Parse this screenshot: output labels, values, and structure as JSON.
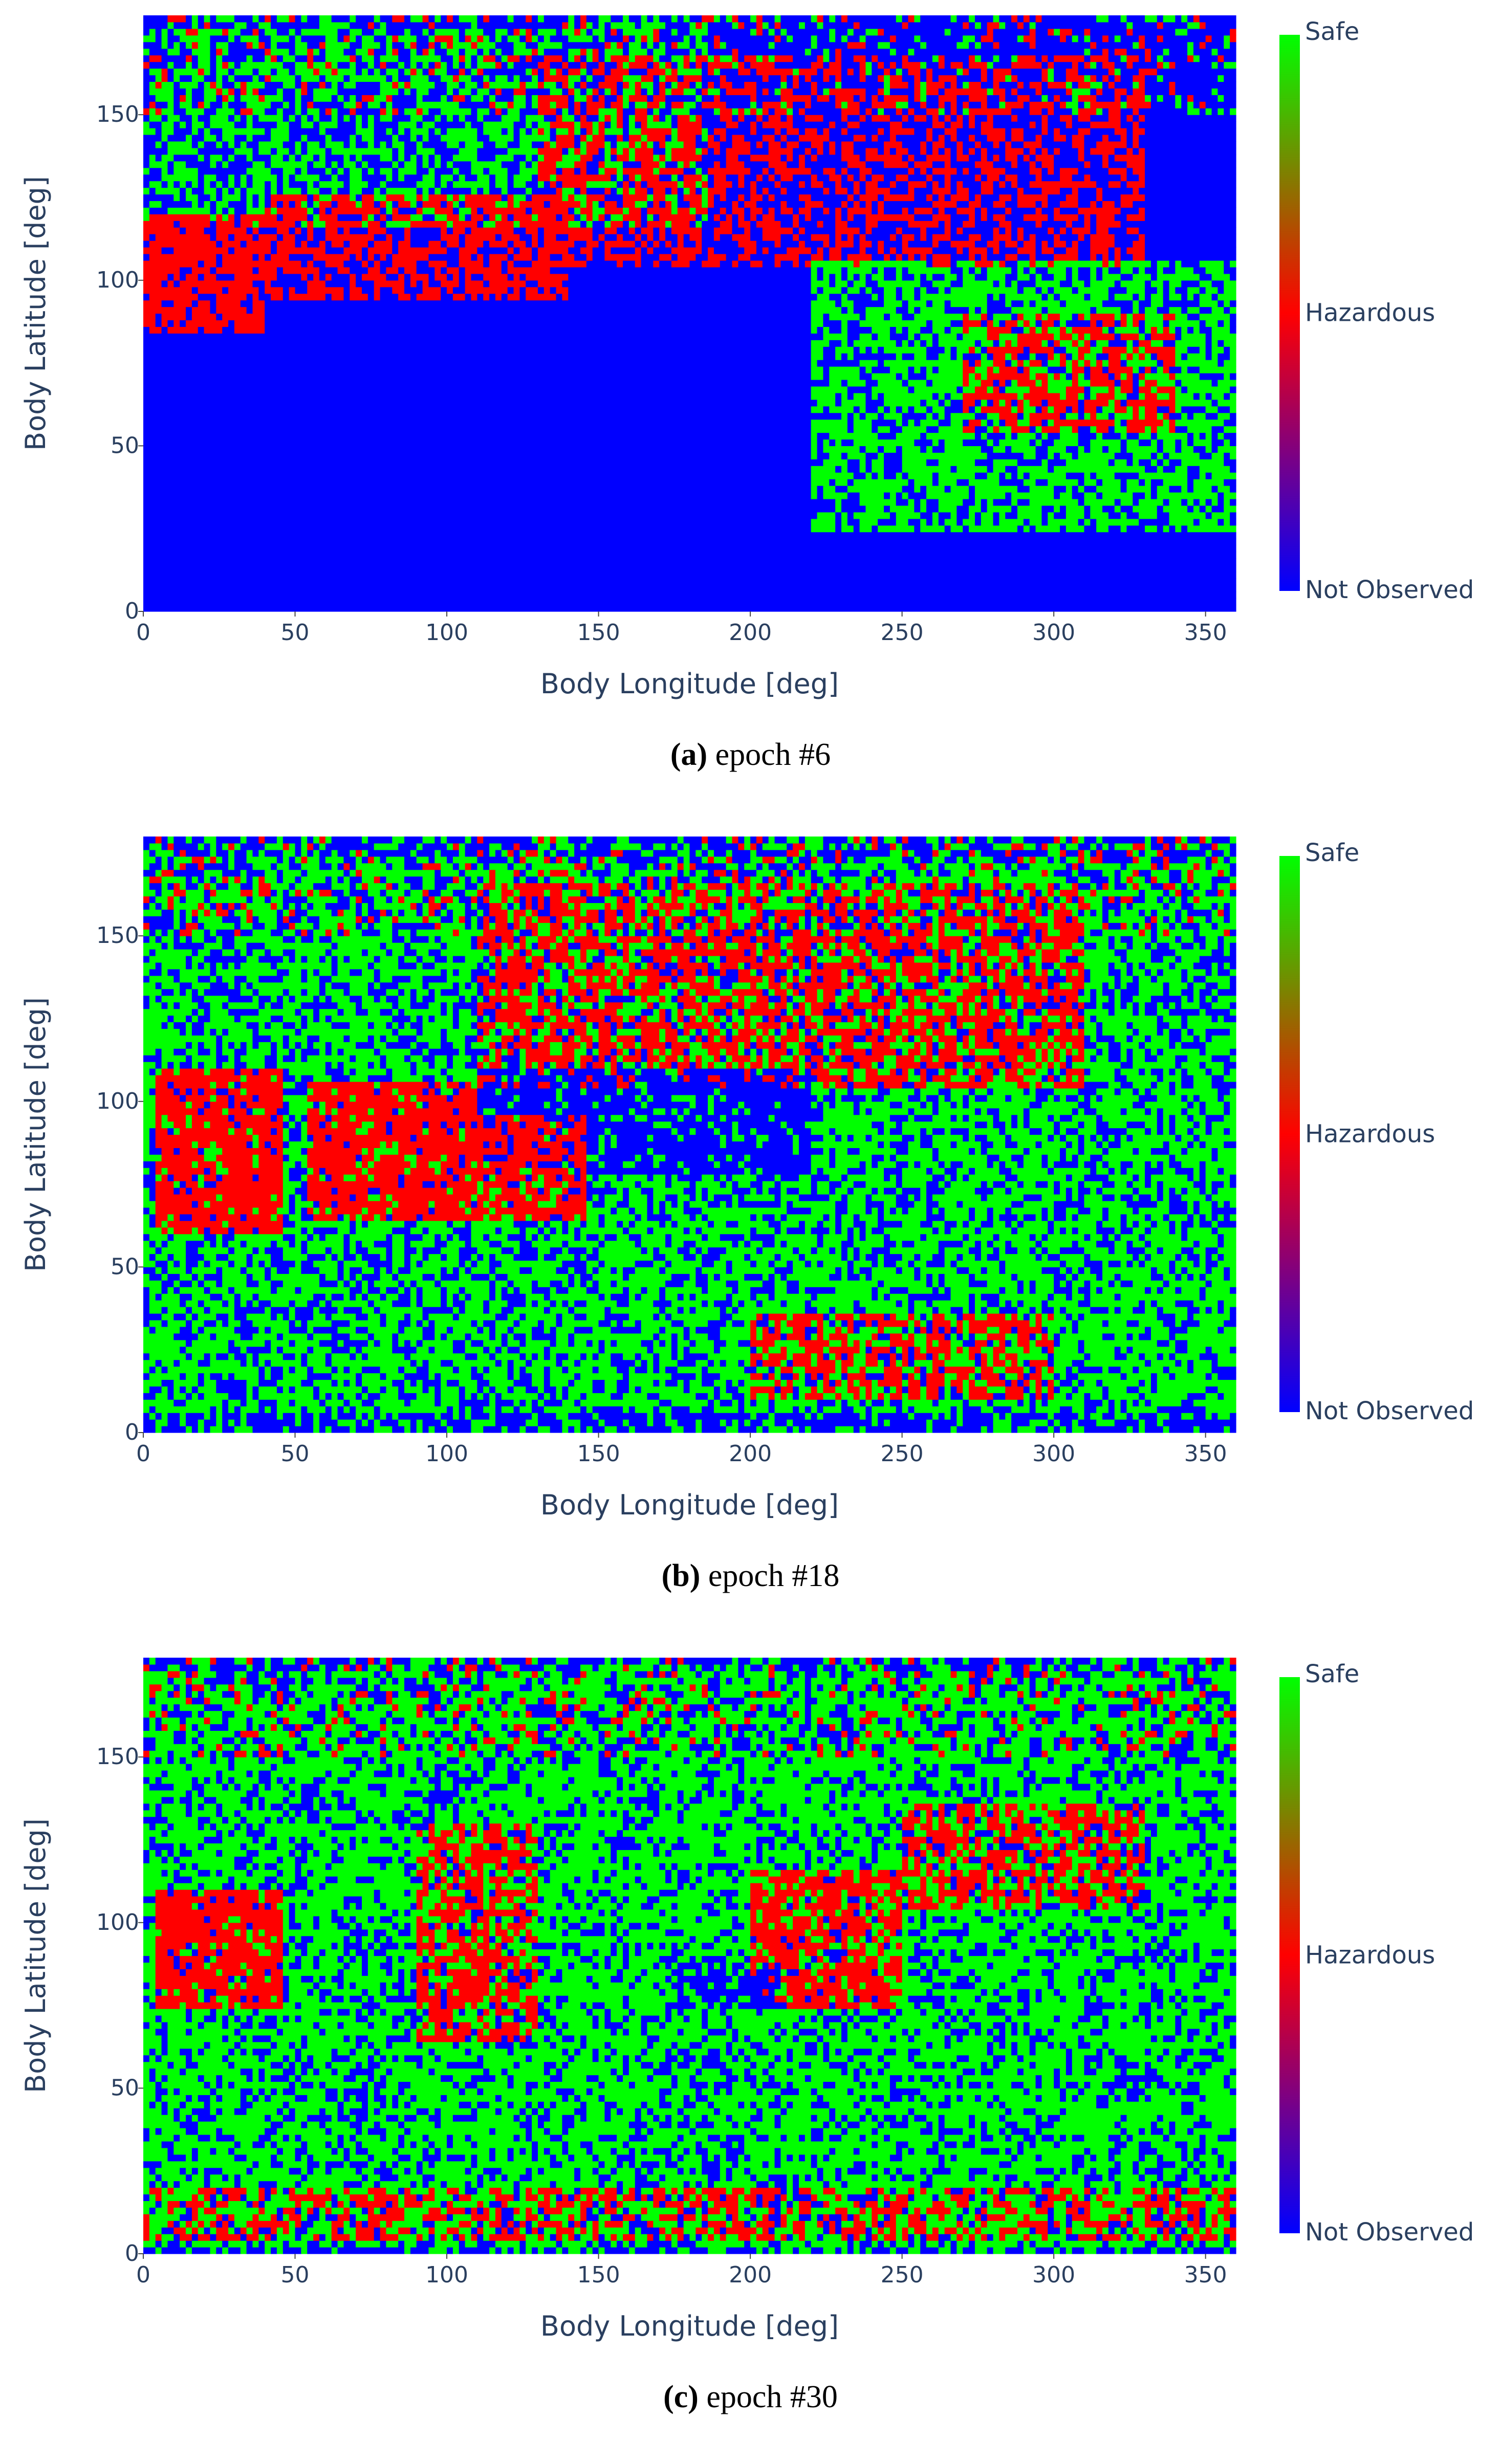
{
  "panels": [
    {
      "caption_label": "(a)",
      "caption_text": "epoch #6",
      "chart_data": {
        "type": "heatmap",
        "xlabel": "Body Longitude [deg]",
        "ylabel": "Body Latitude [deg]",
        "xlim": [
          0,
          360
        ],
        "ylim": [
          0,
          180
        ],
        "xticks": [
          0,
          50,
          100,
          150,
          200,
          250,
          300,
          350
        ],
        "yticks": [
          0,
          50,
          100,
          150
        ],
        "colorbar": {
          "labels": [
            "Safe",
            "Hazardous",
            "Not Observed"
          ],
          "colors": [
            "#00ff00",
            "#ff0000",
            "#0000ff"
          ]
        },
        "classes": [
          "Not Observed",
          "Hazardous",
          "Safe"
        ],
        "regions": [
          {
            "class": "Not Observed",
            "lon_range": [
              0,
              360
            ],
            "lat_range": [
              0,
              180
            ],
            "noise": 0.04
          },
          {
            "class": "Safe",
            "lon_range": [
              0,
              185
            ],
            "lat_range": [
              115,
              180
            ],
            "noise": 0.45
          },
          {
            "class": "Hazardous",
            "lon_range": [
              130,
              330
            ],
            "lat_range": [
              105,
              168
            ],
            "noise": 0.5
          },
          {
            "class": "Hazardous",
            "lon_range": [
              0,
              40
            ],
            "lat_range": [
              85,
              120
            ],
            "noise": 0.2
          },
          {
            "class": "Hazardous",
            "lon_range": [
              40,
              140
            ],
            "lat_range": [
              95,
              125
            ],
            "noise": 0.4
          },
          {
            "class": "Safe",
            "lon_range": [
              220,
              360
            ],
            "lat_range": [
              25,
              105
            ],
            "noise": 0.35
          },
          {
            "class": "Hazardous",
            "lon_range": [
              270,
              340
            ],
            "lat_range": [
              55,
              90
            ],
            "noise": 0.5
          },
          {
            "class": "Not Observed",
            "lon_range": [
              0,
              360
            ],
            "lat_range": [
              176,
              180
            ],
            "noise": 0.5
          }
        ]
      }
    },
    {
      "caption_label": "(b)",
      "caption_text": "epoch #18",
      "chart_data": {
        "type": "heatmap",
        "xlabel": "Body Longitude [deg]",
        "ylabel": "Body Latitude [deg]",
        "xlim": [
          0,
          360
        ],
        "ylim": [
          0,
          180
        ],
        "xticks": [
          0,
          50,
          100,
          150,
          200,
          250,
          300,
          350
        ],
        "yticks": [
          0,
          50,
          100,
          150
        ],
        "colorbar": {
          "labels": [
            "Safe",
            "Hazardous",
            "Not Observed"
          ],
          "colors": [
            "#00ff00",
            "#ff0000",
            "#0000ff"
          ]
        },
        "classes": [
          "Not Observed",
          "Hazardous",
          "Safe"
        ],
        "regions": [
          {
            "class": "Safe",
            "lon_range": [
              0,
              360
            ],
            "lat_range": [
              0,
              180
            ],
            "noise": 0.35
          },
          {
            "class": "Hazardous",
            "lon_range": [
              110,
              310
            ],
            "lat_range": [
              105,
              165
            ],
            "noise": 0.45
          },
          {
            "class": "Not Observed",
            "lon_range": [
              110,
              220
            ],
            "lat_range": [
              78,
              110
            ],
            "noise": 0.3
          },
          {
            "class": "Hazardous",
            "lon_range": [
              5,
              45
            ],
            "lat_range": [
              60,
              110
            ],
            "noise": 0.2
          },
          {
            "class": "Hazardous",
            "lon_range": [
              55,
              110
            ],
            "lat_range": [
              65,
              105
            ],
            "noise": 0.2
          },
          {
            "class": "Hazardous",
            "lon_range": [
              110,
              145
            ],
            "lat_range": [
              65,
              95
            ],
            "noise": 0.3
          },
          {
            "class": "Hazardous",
            "lon_range": [
              200,
              300
            ],
            "lat_range": [
              10,
              35
            ],
            "noise": 0.5
          },
          {
            "class": "Not Observed",
            "lon_range": [
              0,
              360
            ],
            "lat_range": [
              174,
              180
            ],
            "noise": 0.5
          },
          {
            "class": "Not Observed",
            "lon_range": [
              0,
              360
            ],
            "lat_range": [
              0,
              6
            ],
            "noise": 0.5
          }
        ]
      }
    },
    {
      "caption_label": "(c)",
      "caption_text": "epoch #30",
      "chart_data": {
        "type": "heatmap",
        "xlabel": "Body Longitude [deg]",
        "ylabel": "Body Latitude [deg]",
        "xlim": [
          0,
          360
        ],
        "ylim": [
          0,
          180
        ],
        "xticks": [
          0,
          50,
          100,
          150,
          200,
          250,
          300,
          350
        ],
        "yticks": [
          0,
          50,
          100,
          150
        ],
        "colorbar": {
          "labels": [
            "Safe",
            "Hazardous",
            "Not Observed"
          ],
          "colors": [
            "#00ff00",
            "#ff0000",
            "#0000ff"
          ]
        },
        "classes": [
          "Not Observed",
          "Hazardous",
          "Safe"
        ],
        "regions": [
          {
            "class": "Safe",
            "lon_range": [
              0,
              360
            ],
            "lat_range": [
              0,
              180
            ],
            "noise": 0.3
          },
          {
            "class": "Hazardous",
            "lon_range": [
              5,
              45
            ],
            "lat_range": [
              75,
              110
            ],
            "noise": 0.2
          },
          {
            "class": "Hazardous",
            "lon_range": [
              90,
              130
            ],
            "lat_range": [
              65,
              130
            ],
            "noise": 0.45
          },
          {
            "class": "Hazardous",
            "lon_range": [
              200,
              250
            ],
            "lat_range": [
              75,
              115
            ],
            "noise": 0.3
          },
          {
            "class": "Hazardous",
            "lon_range": [
              250,
              330
            ],
            "lat_range": [
              105,
              135
            ],
            "noise": 0.45
          },
          {
            "class": "Not Observed",
            "lon_range": [
              175,
              210
            ],
            "lat_range": [
              75,
              85
            ],
            "noise": 0.3
          },
          {
            "class": "Hazardous",
            "lon_range": [
              0,
              360
            ],
            "lat_range": [
              5,
              20
            ],
            "noise": 0.6
          },
          {
            "class": "Not Observed",
            "lon_range": [
              0,
              360
            ],
            "lat_range": [
              176,
              180
            ],
            "noise": 0.5
          },
          {
            "class": "Not Observed",
            "lon_range": [
              0,
              360
            ],
            "lat_range": [
              0,
              2
            ],
            "noise": 0.5
          }
        ]
      }
    }
  ]
}
